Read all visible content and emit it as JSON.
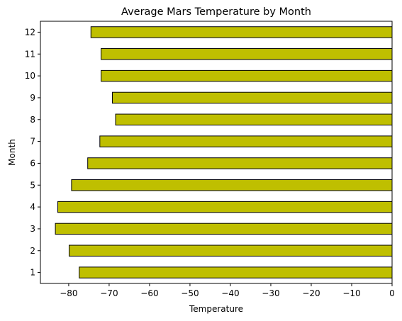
{
  "chart_data": {
    "type": "bar",
    "orientation": "horizontal",
    "title": "Average Mars Temperature by Month",
    "xlabel": "Temperature",
    "ylabel": "Month",
    "categories": [
      "1",
      "2",
      "3",
      "4",
      "5",
      "6",
      "7",
      "8",
      "9",
      "10",
      "11",
      "12"
    ],
    "values": [
      -77.4,
      -79.9,
      -83.3,
      -82.7,
      -79.3,
      -75.3,
      -72.3,
      -68.4,
      -69.2,
      -71.98,
      -71.99,
      -74.5
    ],
    "xlim": [
      -87,
      0
    ],
    "xticks": [
      -80,
      -70,
      -60,
      -50,
      -40,
      -30,
      -20,
      -10,
      0
    ],
    "xtick_labels": [
      "−80",
      "−70",
      "−60",
      "−50",
      "−40",
      "−30",
      "−20",
      "−10",
      "0"
    ],
    "grid": false,
    "legend": "none",
    "colors": {
      "bar_fill": "#bfbf00",
      "bar_edge": "#000000"
    }
  }
}
